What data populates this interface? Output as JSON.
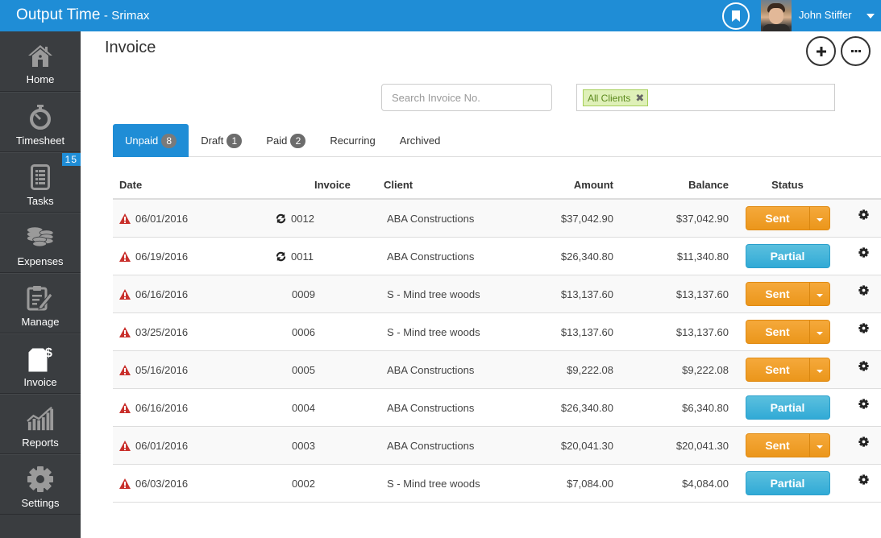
{
  "topbar": {
    "app_name": "Output Time",
    "org_name": " - Srimax",
    "user_name": "John Stiffer"
  },
  "sidebar": {
    "items": [
      {
        "label": "Home",
        "icon": "home-icon"
      },
      {
        "label": "Timesheet",
        "icon": "stopwatch-icon"
      },
      {
        "label": "Tasks",
        "icon": "tasks-list-icon",
        "badge": "15"
      },
      {
        "label": "Expenses",
        "icon": "coins-icon"
      },
      {
        "label": "Manage",
        "icon": "clipboard-edit-icon"
      },
      {
        "label": "Invoice",
        "icon": "invoice-dollar-icon",
        "active": true
      },
      {
        "label": "Reports",
        "icon": "bar-chart-icon"
      },
      {
        "label": "Settings",
        "icon": "gear-icon"
      }
    ]
  },
  "page": {
    "title": "Invoice",
    "search_placeholder": "Search Invoice No.",
    "client_filter_tag": "All Clients",
    "tag_remove": "✖"
  },
  "tabs": [
    {
      "label": "Unpaid",
      "count": "8",
      "active": true
    },
    {
      "label": "Draft",
      "count": "1"
    },
    {
      "label": "Paid",
      "count": "2"
    },
    {
      "label": "Recurring"
    },
    {
      "label": "Archived"
    }
  ],
  "table": {
    "headers": {
      "date": "Date",
      "invoice": "Invoice",
      "client": "Client",
      "amount": "Amount",
      "balance": "Balance",
      "status": "Status"
    },
    "rows": [
      {
        "date": "06/01/2016",
        "invoice": "0012",
        "recurring": true,
        "client": "ABA Constructions",
        "amount": "$37,042.90",
        "balance": "$37,042.90",
        "status": "Sent"
      },
      {
        "date": "06/19/2016",
        "invoice": "0011",
        "recurring": true,
        "client": "ABA Constructions",
        "amount": "$26,340.80",
        "balance": "$11,340.80",
        "status": "Partial"
      },
      {
        "date": "06/16/2016",
        "invoice": "0009",
        "recurring": false,
        "client": "S - Mind tree woods",
        "amount": "$13,137.60",
        "balance": "$13,137.60",
        "status": "Sent"
      },
      {
        "date": "03/25/2016",
        "invoice": "0006",
        "recurring": false,
        "client": "S - Mind tree woods",
        "amount": "$13,137.60",
        "balance": "$13,137.60",
        "status": "Sent"
      },
      {
        "date": "05/16/2016",
        "invoice": "0005",
        "recurring": false,
        "client": "ABA Constructions",
        "amount": "$9,222.08",
        "balance": "$9,222.08",
        "status": "Sent"
      },
      {
        "date": "06/16/2016",
        "invoice": "0004",
        "recurring": false,
        "client": "ABA Constructions",
        "amount": "$26,340.80",
        "balance": "$6,340.80",
        "status": "Partial"
      },
      {
        "date": "06/01/2016",
        "invoice": "0003",
        "recurring": false,
        "client": "ABA Constructions",
        "amount": "$20,041.30",
        "balance": "$20,041.30",
        "status": "Sent"
      },
      {
        "date": "06/03/2016",
        "invoice": "0002",
        "recurring": false,
        "client": "S - Mind tree woods",
        "amount": "$7,084.00",
        "balance": "$4,084.00",
        "status": "Partial"
      }
    ]
  },
  "colors": {
    "brand_blue": "#1f8dd6",
    "sidebar_bg": "#3a3d40",
    "sent_orange": "#f0a02c",
    "partial_cyan": "#3ab3db",
    "warning_red": "#c9302c",
    "tag_green_bg": "#dff0b8"
  }
}
